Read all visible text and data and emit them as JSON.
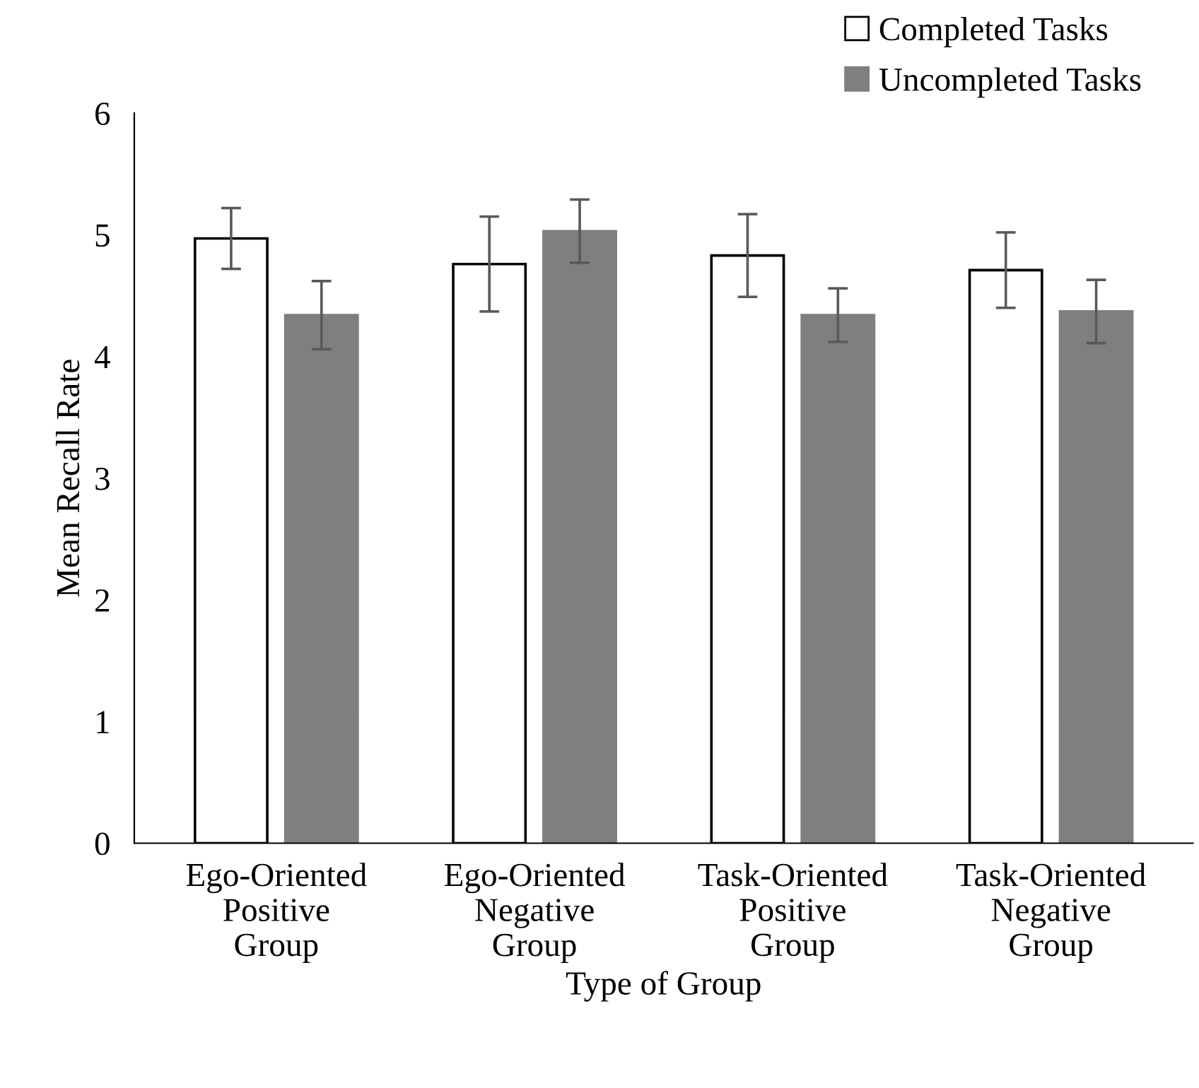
{
  "chart_data": {
    "type": "bar",
    "xlabel": "Type of Group",
    "ylabel": "Mean Recall Rate",
    "categories": [
      "Ego-Oriented\nPositive\nGroup",
      "Ego-Oriented\nNegative\nGroup",
      "Task-Oriented\nPositive\nGroup",
      "Task-Oriented\nNegative\nGroup"
    ],
    "series": [
      {
        "name": "Completed Tasks",
        "color": "#ffffff",
        "values": [
          4.97,
          4.76,
          4.83,
          4.71
        ],
        "errors": [
          0.25,
          0.39,
          0.34,
          0.31
        ]
      },
      {
        "name": "Uncompleted Tasks",
        "color": "#7f7f7f",
        "values": [
          4.34,
          5.03,
          4.34,
          4.37
        ],
        "errors": [
          0.28,
          0.26,
          0.22,
          0.26
        ]
      }
    ],
    "ylim": [
      0,
      6
    ],
    "yticks": [
      0,
      1,
      2,
      3,
      4,
      5,
      6
    ],
    "grid": false,
    "legend": "top right"
  }
}
